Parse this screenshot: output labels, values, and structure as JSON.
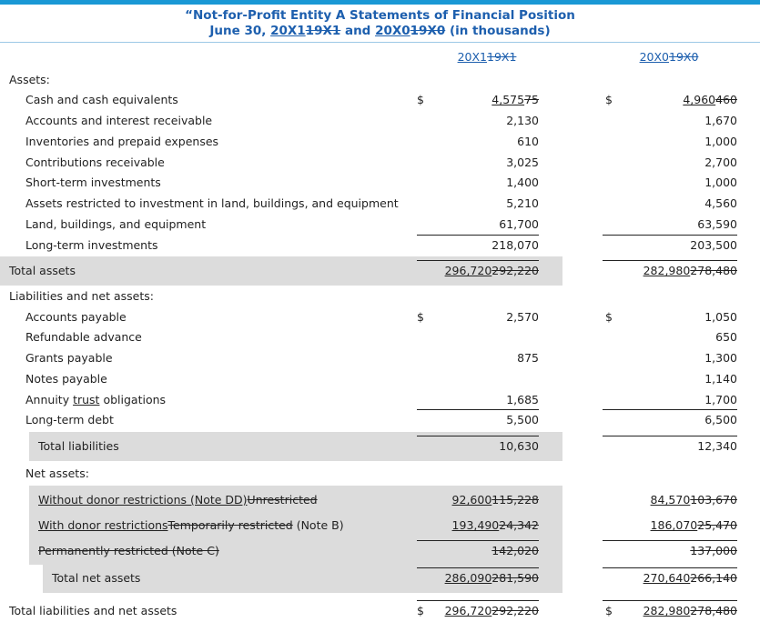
{
  "header": {
    "title": [
      {
        "text": "“Not-for-Profit Entity A Statements of Financial Position"
      }
    ],
    "subtitle": [
      {
        "text": "June 30, "
      },
      {
        "text": "20X1",
        "style": "u"
      },
      {
        "text": "19X1",
        "style": "s"
      },
      {
        "text": " and "
      },
      {
        "text": "20X0",
        "style": "u"
      },
      {
        "text": "19X0",
        "style": "s"
      },
      {
        "text": " (in thousands)"
      }
    ]
  },
  "columns": [
    [
      {
        "text": "20X1",
        "style": "u"
      },
      {
        "text": "19X1",
        "style": "s"
      }
    ],
    [
      {
        "text": "20X0",
        "style": "u"
      },
      {
        "text": "19X0",
        "style": "s"
      }
    ]
  ],
  "rows": [
    {
      "label": [
        {
          "text": "Assets:"
        }
      ],
      "level": 0
    },
    {
      "label": [
        {
          "text": "Cash and cash equivalents"
        }
      ],
      "level": 1,
      "cells": [
        {
          "dollar": "$",
          "value": [
            {
              "text": "4,575",
              "style": "u"
            },
            {
              "text": "75",
              "style": "s"
            }
          ]
        },
        {
          "dollar": "$",
          "value": [
            {
              "text": "4,960",
              "style": "u"
            },
            {
              "text": "460",
              "style": "s"
            }
          ]
        }
      ]
    },
    {
      "label": [
        {
          "text": "Accounts and interest receivable"
        }
      ],
      "level": 1,
      "cells": [
        {
          "value": [
            {
              "text": "2,130"
            }
          ]
        },
        {
          "value": [
            {
              "text": "1,670"
            }
          ]
        }
      ]
    },
    {
      "label": [
        {
          "text": "Inventories and prepaid expenses"
        }
      ],
      "level": 1,
      "cells": [
        {
          "value": [
            {
              "text": "610"
            }
          ]
        },
        {
          "value": [
            {
              "text": "1,000"
            }
          ]
        }
      ]
    },
    {
      "label": [
        {
          "text": "Contributions receivable"
        }
      ],
      "level": 1,
      "cells": [
        {
          "value": [
            {
              "text": "3,025"
            }
          ]
        },
        {
          "value": [
            {
              "text": "2,700"
            }
          ]
        }
      ]
    },
    {
      "label": [
        {
          "text": "Short-term investments"
        }
      ],
      "level": 1,
      "cells": [
        {
          "value": [
            {
              "text": "1,400"
            }
          ]
        },
        {
          "value": [
            {
              "text": "1,000"
            }
          ]
        }
      ]
    },
    {
      "label": [
        {
          "text": "Assets restricted to investment in land, buildings, and equipment"
        }
      ],
      "level": 1,
      "cells": [
        {
          "value": [
            {
              "text": "5,210"
            }
          ]
        },
        {
          "value": [
            {
              "text": "4,560"
            }
          ]
        }
      ]
    },
    {
      "label": [
        {
          "text": "Land, buildings, and equipment"
        }
      ],
      "level": 1,
      "cells": [
        {
          "value": [
            {
              "text": "61,700"
            }
          ]
        },
        {
          "value": [
            {
              "text": "63,590"
            }
          ]
        }
      ]
    },
    {
      "label": [
        {
          "text": "Long-term investments"
        }
      ],
      "level": 1,
      "rule": true,
      "cells": [
        {
          "value": [
            {
              "text": "218,070"
            }
          ]
        },
        {
          "value": [
            {
              "text": "203,500"
            }
          ]
        }
      ]
    },
    {
      "label": [
        {
          "text": "Total assets"
        }
      ],
      "level": 0,
      "highlight": true,
      "rule": true,
      "cells": [
        {
          "value": [
            {
              "text": "296,720",
              "style": "u"
            },
            {
              "text": "292,220",
              "style": "s"
            }
          ]
        },
        {
          "value": [
            {
              "text": "282,980",
              "style": "u"
            },
            {
              "text": "278,480",
              "style": "s"
            }
          ]
        }
      ]
    },
    {
      "label": [
        {
          "text": "Liabilities and net assets:"
        }
      ],
      "level": 0
    },
    {
      "label": [
        {
          "text": "Accounts payable"
        }
      ],
      "level": 1,
      "cells": [
        {
          "dollar": "$",
          "value": [
            {
              "text": "2,570"
            }
          ]
        },
        {
          "dollar": "$",
          "value": [
            {
              "text": "1,050"
            }
          ]
        }
      ]
    },
    {
      "label": [
        {
          "text": "Refundable advance"
        }
      ],
      "level": 1,
      "cells": [
        {
          "value": []
        },
        {
          "value": [
            {
              "text": "650"
            }
          ]
        }
      ]
    },
    {
      "label": [
        {
          "text": "Grants payable"
        }
      ],
      "level": 1,
      "cells": [
        {
          "value": [
            {
              "text": "875"
            }
          ]
        },
        {
          "value": [
            {
              "text": "1,300"
            }
          ]
        }
      ]
    },
    {
      "label": [
        {
          "text": "Notes payable"
        }
      ],
      "level": 1,
      "cells": [
        {
          "value": []
        },
        {
          "value": [
            {
              "text": "1,140"
            }
          ]
        }
      ]
    },
    {
      "label": [
        {
          "text": "Annuity "
        },
        {
          "text": "trust",
          "style": "u"
        },
        {
          "text": " obligations"
        }
      ],
      "level": 1,
      "cells": [
        {
          "value": [
            {
              "text": "1,685"
            }
          ]
        },
        {
          "value": [
            {
              "text": "1,700"
            }
          ]
        }
      ]
    },
    {
      "label": [
        {
          "text": "Long-term debt"
        }
      ],
      "level": 1,
      "rule": true,
      "cells": [
        {
          "value": [
            {
              "text": "5,500"
            }
          ]
        },
        {
          "value": [
            {
              "text": "6,500"
            }
          ]
        }
      ]
    },
    {
      "label": [
        {
          "text": "Total liabilities"
        }
      ],
      "level": 2,
      "highlight": true,
      "rule": true,
      "cells": [
        {
          "value": [
            {
              "text": "10,630"
            }
          ]
        },
        {
          "value": [
            {
              "text": "12,340"
            }
          ]
        }
      ]
    },
    {
      "label": [
        {
          "text": "Net assets:"
        }
      ],
      "level": 1
    },
    {
      "label": [
        {
          "text": "Without donor restrictions (Note DD)",
          "style": "u"
        },
        {
          "text": "Unrestricted",
          "style": "s"
        }
      ],
      "level": 2,
      "highlight": true,
      "cells": [
        {
          "value": [
            {
              "text": "92,600",
              "style": "u"
            },
            {
              "text": "115,228",
              "style": "s"
            }
          ]
        },
        {
          "value": [
            {
              "text": "84,570",
              "style": "u"
            },
            {
              "text": "103,670",
              "style": "s"
            }
          ]
        }
      ]
    },
    {
      "label": [
        {
          "text": "With donor restrictions",
          "style": "u"
        },
        {
          "text": "Temporarily restricted",
          "style": "s"
        },
        {
          "text": " (Note B)"
        }
      ],
      "level": 2,
      "highlight": true,
      "cells": [
        {
          "value": [
            {
              "text": "193,490",
              "style": "u"
            },
            {
              "text": "24,342",
              "style": "s"
            }
          ]
        },
        {
          "value": [
            {
              "text": "186,070",
              "style": "u"
            },
            {
              "text": "25,470",
              "style": "s"
            }
          ]
        }
      ]
    },
    {
      "label": [
        {
          "text": "Permanently restricted (Note C)",
          "style": "s"
        }
      ],
      "level": 2,
      "highlight": true,
      "rule": true,
      "cells": [
        {
          "value": [
            {
              "text": "142,020",
              "style": "s"
            }
          ]
        },
        {
          "value": [
            {
              "text": "137,000",
              "style": "s"
            }
          ]
        }
      ]
    },
    {
      "label": [
        {
          "text": "Total net assets"
        }
      ],
      "level": 3,
      "highlight": true,
      "rule": true,
      "cells": [
        {
          "value": [
            {
              "text": "286,090",
              "style": "u"
            },
            {
              "text": "281,590",
              "style": "s"
            }
          ]
        },
        {
          "value": [
            {
              "text": "270,640",
              "style": "u"
            },
            {
              "text": "266,140",
              "style": "s"
            }
          ]
        }
      ]
    },
    {
      "label": [
        {
          "text": "Total liabilities and net assets"
        }
      ],
      "level": 0,
      "rule": true,
      "cells": [
        {
          "dollar": "$",
          "value": [
            {
              "text": "296,720",
              "style": "u"
            },
            {
              "text": "292,220",
              "style": "s"
            }
          ]
        },
        {
          "dollar": "$",
          "value": [
            {
              "text": "282,980",
              "style": "u"
            },
            {
              "text": "278,480",
              "style": "s"
            }
          ]
        }
      ]
    }
  ]
}
